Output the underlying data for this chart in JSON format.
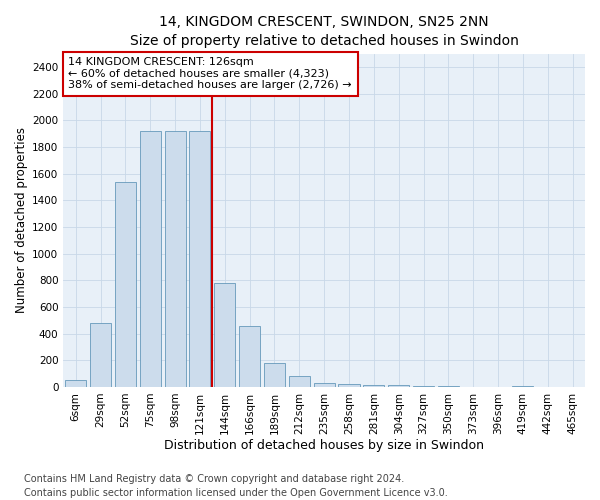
{
  "title": "14, KINGDOM CRESCENT, SWINDON, SN25 2NN",
  "subtitle": "Size of property relative to detached houses in Swindon",
  "xlabel": "Distribution of detached houses by size in Swindon",
  "ylabel": "Number of detached properties",
  "categories": [
    "6sqm",
    "29sqm",
    "52sqm",
    "75sqm",
    "98sqm",
    "121sqm",
    "144sqm",
    "166sqm",
    "189sqm",
    "212sqm",
    "235sqm",
    "258sqm",
    "281sqm",
    "304sqm",
    "327sqm",
    "350sqm",
    "373sqm",
    "396sqm",
    "419sqm",
    "442sqm",
    "465sqm"
  ],
  "values": [
    50,
    480,
    1540,
    1920,
    1920,
    1920,
    780,
    460,
    180,
    80,
    30,
    22,
    18,
    12,
    5,
    5,
    3,
    2,
    8,
    0,
    0
  ],
  "bar_color": "#ccdcec",
  "bar_edge_color": "#6699bb",
  "red_line_label": "14 KINGDOM CRESCENT: 126sqm",
  "annotation_line1": "← 60% of detached houses are smaller (4,323)",
  "annotation_line2": "38% of semi-detached houses are larger (2,726) →",
  "vline_index": 5,
  "ylim": [
    0,
    2500
  ],
  "yticks": [
    0,
    200,
    400,
    600,
    800,
    1000,
    1200,
    1400,
    1600,
    1800,
    2000,
    2200,
    2400
  ],
  "annotation_box_color": "#cc0000",
  "vline_color": "#cc0000",
  "footnote1": "Contains HM Land Registry data © Crown copyright and database right 2024.",
  "footnote2": "Contains public sector information licensed under the Open Government Licence v3.0.",
  "background_color": "#ffffff",
  "plot_bg_color": "#e8f0f8",
  "grid_color": "#c8d8e8",
  "title_fontsize": 10,
  "axis_label_fontsize": 8.5,
  "tick_fontsize": 7.5,
  "footnote_fontsize": 7,
  "annotation_fontsize": 8
}
